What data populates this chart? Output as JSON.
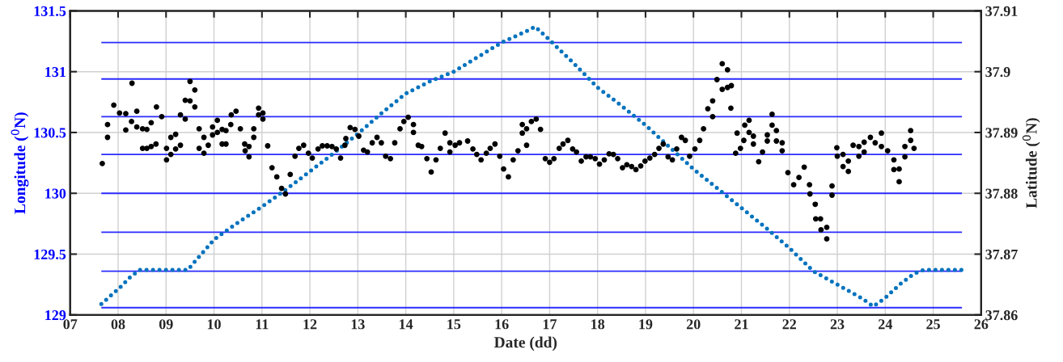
{
  "chart_data": {
    "type": "scatter",
    "xlabel": "Date (dd)",
    "ylabel": "Longitude ($^{0}$N)",
    "y2label": "Latitude ($^{0}$N)",
    "xlim": [
      7,
      26
    ],
    "xticks": [
      {
        "value": 7,
        "label": "07"
      },
      {
        "value": 8,
        "label": "08"
      },
      {
        "value": 9,
        "label": "09"
      },
      10,
      11,
      12,
      13,
      14,
      15,
      16,
      17,
      18,
      19,
      20,
      21,
      22,
      23,
      24,
      25,
      26
    ],
    "ylim": [
      129,
      131.5
    ],
    "yticks": [
      129,
      129.5,
      130,
      130.5,
      131,
      131.5
    ],
    "y2lim": [
      37.86,
      37.91
    ],
    "y2ticks": [
      37.86,
      37.87,
      37.88,
      37.89,
      37.9,
      37.91
    ],
    "grid": true,
    "marker": "circle",
    "ref_lines": [
      {
        "axis": "y",
        "value": 129.06,
        "color": "#2b2bff"
      },
      {
        "axis": "y",
        "value": 129.36,
        "color": "#2b2bff"
      },
      {
        "axis": "y",
        "value": 129.68,
        "color": "#2b2bff"
      },
      {
        "axis": "y",
        "value": 130.0,
        "color": "#2b2bff"
      },
      {
        "axis": "y",
        "value": 130.32,
        "color": "#2b2bff"
      },
      {
        "axis": "y",
        "value": 130.63,
        "color": "#2b2bff"
      },
      {
        "axis": "y",
        "value": 130.94,
        "color": "#2b2bff"
      },
      {
        "axis": "y",
        "value": 131.24,
        "color": "#2b2bff"
      }
    ],
    "series": [
      {
        "type": "line",
        "line_style": "dotted",
        "marker": "none",
        "color": "#0072bd",
        "axis": "y",
        "x": [
          7.65,
          7.85,
          8.05,
          8.25,
          8.45,
          8.65,
          8.85,
          9.05,
          9.25,
          9.45,
          10,
          10.5,
          11,
          11.5,
          12,
          12.5,
          13,
          13.5,
          14,
          14.5,
          15,
          15.5,
          16,
          16.5,
          16.7,
          17,
          17.5,
          18,
          18.5,
          19,
          19.5,
          20,
          20.5,
          21,
          21.5,
          22,
          22.5,
          23,
          23.5,
          23.75,
          24,
          24.3,
          24.6,
          24.8,
          25.2,
          25.6
        ],
        "values": [
          129.09,
          129.16,
          129.23,
          129.31,
          129.37,
          129.37,
          129.37,
          129.37,
          129.37,
          129.37,
          129.62,
          129.76,
          129.89,
          130.03,
          130.18,
          130.33,
          130.49,
          130.66,
          130.82,
          130.92,
          131.0,
          131.12,
          131.24,
          131.33,
          131.37,
          131.26,
          131.07,
          130.87,
          130.72,
          130.56,
          130.38,
          130.2,
          130.04,
          129.88,
          129.72,
          129.55,
          129.36,
          129.25,
          129.14,
          129.07,
          129.14,
          129.25,
          129.34,
          129.37,
          129.37,
          129.37
        ]
      },
      {
        "color": "#000000",
        "axis": "y2",
        "x": [
          7.67,
          7.78,
          7.78,
          7.91,
          8.03,
          8.16,
          8.16,
          8.29,
          8.28,
          8.39,
          8.39,
          8.51,
          8.51,
          8.6,
          8.6,
          8.69,
          8.69,
          8.79,
          8.8,
          8.91,
          9.01,
          9.01,
          9.1,
          9.1,
          9.2,
          9.2,
          9.3,
          9.3,
          9.4,
          9.4,
          9.5,
          9.5,
          9.6,
          9.6,
          9.69,
          9.69,
          9.79,
          9.79,
          9.88,
          9.97,
          9.97,
          10.07,
          10.07,
          10.17,
          10.17,
          10.25,
          10.25,
          10.35,
          10.36,
          10.46,
          10.55,
          10.64,
          10.65,
          10.73,
          10.73,
          10.83,
          10.83,
          10.93,
          10.93,
          11.02,
          11.02,
          11.12,
          11.21,
          11.31,
          11.41,
          11.49,
          11.59,
          11.69,
          11.77,
          11.87,
          11.97,
          12.05,
          12.17,
          12.26,
          12.36,
          12.46,
          12.55,
          12.64,
          12.73,
          12.75,
          12.84,
          12.94,
          13.02,
          13.12,
          13.2,
          13.3,
          13.4,
          13.49,
          13.58,
          13.68,
          13.77,
          13.88,
          13.96,
          14.05,
          14.16,
          14.16,
          14.26,
          14.33,
          14.44,
          14.53,
          14.63,
          14.72,
          14.82,
          14.92,
          14.92,
          15.03,
          15.12,
          15.29,
          15.4,
          15.48,
          15.57,
          15.68,
          15.76,
          15.86,
          15.96,
          16.04,
          16.14,
          16.24,
          16.34,
          16.43,
          16.43,
          16.52,
          16.52,
          16.62,
          16.72,
          16.81,
          16.91,
          17.0,
          17.09,
          17.2,
          17.28,
          17.38,
          17.48,
          17.56,
          17.66,
          17.76,
          17.85,
          17.95,
          18.04,
          18.14,
          18.24,
          18.33,
          18.42,
          18.52,
          18.61,
          18.71,
          18.8,
          18.9,
          18.99,
          19.09,
          19.19,
          19.28,
          19.37,
          19.47,
          19.56,
          19.65,
          19.75,
          19.83,
          19.92,
          20.03,
          20.13,
          20.21,
          20.3,
          20.4,
          20.4,
          20.49,
          20.6,
          20.6,
          20.71,
          20.71,
          20.79,
          20.78,
          20.88,
          20.91,
          20.98,
          21.05,
          21.07,
          21.16,
          21.16,
          21.25,
          21.25,
          21.36,
          21.44,
          21.54,
          21.54,
          21.64,
          21.64,
          21.73,
          21.73,
          21.85,
          21.85,
          21.97,
          22.09,
          22.2,
          22.31,
          22.42,
          22.43,
          22.54,
          22.55,
          22.65,
          22.66,
          22.78,
          22.78,
          22.89,
          22.89,
          22.99,
          23.0,
          23.12,
          23.12,
          23.23,
          23.23,
          23.33,
          23.45,
          23.45,
          23.56,
          23.56,
          23.69,
          23.79,
          23.92,
          23.92,
          24.05,
          24.18,
          24.18,
          24.29,
          24.29,
          24.41,
          24.41,
          24.53,
          24.53,
          24.6
        ],
        "values": [
          37.8849,
          37.8892,
          37.8913,
          37.8945,
          37.8932,
          37.8904,
          37.8931,
          37.8981,
          37.8918,
          37.8935,
          37.8909,
          37.8906,
          37.8874,
          37.8905,
          37.8874,
          37.8916,
          37.8877,
          37.8881,
          37.8942,
          37.8926,
          37.8874,
          37.8855,
          37.8864,
          37.8892,
          37.8897,
          37.8873,
          37.8879,
          37.8929,
          37.8922,
          37.8953,
          37.8952,
          37.8984,
          37.8942,
          37.897,
          37.8906,
          37.8874,
          37.8866,
          37.8892,
          37.8879,
          37.8896,
          37.8909,
          37.892,
          37.89,
          37.8881,
          37.8905,
          37.8881,
          37.8903,
          37.8913,
          37.8929,
          37.8935,
          37.8906,
          37.8881,
          37.887,
          37.886,
          37.8877,
          37.8892,
          37.8906,
          37.894,
          37.8929,
          37.8932,
          37.8922,
          37.8878,
          37.8842,
          37.8827,
          37.8808,
          37.8799,
          37.8831,
          37.8861,
          37.8874,
          37.8879,
          37.8866,
          37.8858,
          37.8873,
          37.8878,
          37.8878,
          37.8877,
          37.8873,
          37.8858,
          37.8879,
          37.889,
          37.8908,
          37.8905,
          37.8894,
          37.8871,
          37.8868,
          37.8883,
          37.8892,
          37.8883,
          37.8861,
          37.8857,
          37.8883,
          37.8906,
          37.8918,
          37.8925,
          37.8913,
          37.89,
          37.8879,
          37.8877,
          37.8857,
          37.8835,
          37.8855,
          37.8874,
          37.8899,
          37.8868,
          37.8883,
          37.8879,
          37.8883,
          37.8886,
          37.8873,
          37.8864,
          37.8855,
          37.8866,
          37.8874,
          37.8881,
          37.8861,
          37.884,
          37.8827,
          37.8855,
          37.887,
          37.8899,
          37.8913,
          37.8879,
          37.8906,
          37.8918,
          37.8922,
          37.8905,
          37.8857,
          37.8851,
          37.8857,
          37.8874,
          37.8881,
          37.8887,
          37.8873,
          37.8868,
          37.8853,
          37.886,
          37.886,
          37.8857,
          37.8848,
          37.8855,
          37.8865,
          37.8864,
          37.8857,
          37.8842,
          37.8847,
          37.8844,
          37.8839,
          37.8845,
          37.8853,
          37.8858,
          37.8864,
          37.8874,
          37.8881,
          37.886,
          37.8855,
          37.8873,
          37.8892,
          37.8887,
          37.8861,
          37.8873,
          37.8887,
          37.8906,
          37.8939,
          37.8926,
          37.8952,
          37.8987,
          37.9013,
          37.8971,
          37.9003,
          37.8974,
          37.8977,
          37.894,
          37.8866,
          37.8899,
          37.8874,
          37.8887,
          37.8912,
          37.892,
          37.89,
          37.8881,
          37.8894,
          37.8852,
          37.8868,
          37.8886,
          37.8896,
          37.893,
          37.8912,
          37.8903,
          37.8886,
          37.8883,
          37.887,
          37.8834,
          37.8814,
          37.8826,
          37.8843,
          37.8814,
          37.8799,
          37.8782,
          37.8758,
          37.8758,
          37.874,
          37.8744,
          37.8725,
          37.8797,
          37.8812,
          37.8875,
          37.8861,
          37.8864,
          37.8844,
          37.8853,
          37.8836,
          37.8879,
          37.8877,
          37.8861,
          37.8884,
          37.8868,
          37.8892,
          37.8883,
          37.8899,
          37.8877,
          37.887,
          37.8855,
          37.8839,
          37.884,
          37.8819,
          37.886,
          37.8877,
          37.8887,
          37.8903,
          37.8874
        ]
      }
    ]
  }
}
